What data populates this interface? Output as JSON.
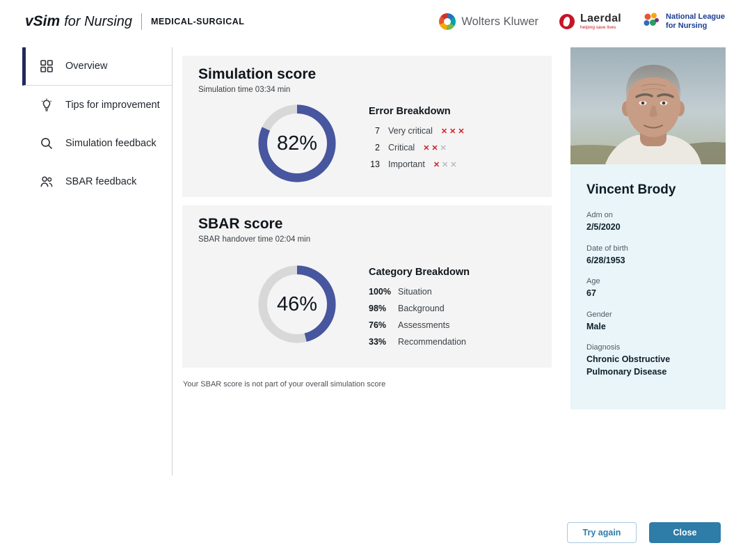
{
  "header": {
    "brand": {
      "vsim": "vSim",
      "for_nursing": "for Nursing",
      "product": "MEDICAL-SURGICAL"
    },
    "logos": {
      "wolters": "Wolters Kluwer",
      "laerdal": "Laerdal",
      "laerdal_tag": "helping save lives",
      "nln_line1": "National League",
      "nln_line2": "for Nursing"
    }
  },
  "sidebar": {
    "items": [
      {
        "label": "Overview"
      },
      {
        "label": "Tips for improvement"
      },
      {
        "label": "Simulation feedback"
      },
      {
        "label": "SBAR feedback"
      }
    ]
  },
  "main": {
    "simulation_card": {
      "title": "Simulation score",
      "subtitle": "Simulation time 03:34 min",
      "score": "82%",
      "score_value": 82,
      "error_breakdown": {
        "title": "Error Breakdown",
        "rows": [
          {
            "count": "7",
            "label": "Very critical",
            "marks_red": 3,
            "marks_gray": 0
          },
          {
            "count": "2",
            "label": "Critical",
            "marks_red": 2,
            "marks_gray": 1
          },
          {
            "count": "13",
            "label": "Important",
            "marks_red": 1,
            "marks_gray": 2
          }
        ]
      }
    },
    "sbar_card": {
      "title": "SBAR score",
      "subtitle": "SBAR handover time 02:04 min",
      "score": "46%",
      "score_value": 46,
      "category_breakdown": {
        "title": "Category Breakdown",
        "rows": [
          {
            "value": "100%",
            "label": "Situation"
          },
          {
            "value": "98%",
            "label": "Background"
          },
          {
            "value": "76%",
            "label": "Assessments"
          },
          {
            "value": "33%",
            "label": "Recommendation"
          }
        ]
      }
    },
    "note": "Your SBAR score is not part of your overall simulation score"
  },
  "patient": {
    "name": "Vincent Brody",
    "fields": [
      {
        "label": "Adm on",
        "value": "2/5/2020"
      },
      {
        "label": "Date of birth",
        "value": "6/28/1953"
      },
      {
        "label": "Age",
        "value": "67"
      },
      {
        "label": "Gender",
        "value": "Male"
      },
      {
        "label": "Diagnosis",
        "value": "Chronic Obstructive Pulmonary Disease"
      }
    ]
  },
  "footer": {
    "try_again": "Try again",
    "close": "Close"
  },
  "colors": {
    "donut_fill": "#47569e",
    "donut_track": "#d8d8d8",
    "accent_blue": "#2e7ca8",
    "error_red": "#cc2127"
  },
  "chart_data": [
    {
      "type": "pie",
      "subtype": "donut",
      "title": "Simulation score",
      "values": [
        82,
        18
      ],
      "labels": [
        "score",
        "remainder"
      ],
      "center_label": "82%"
    },
    {
      "type": "pie",
      "subtype": "donut",
      "title": "SBAR score",
      "values": [
        46,
        54
      ],
      "labels": [
        "score",
        "remainder"
      ],
      "center_label": "46%"
    }
  ]
}
